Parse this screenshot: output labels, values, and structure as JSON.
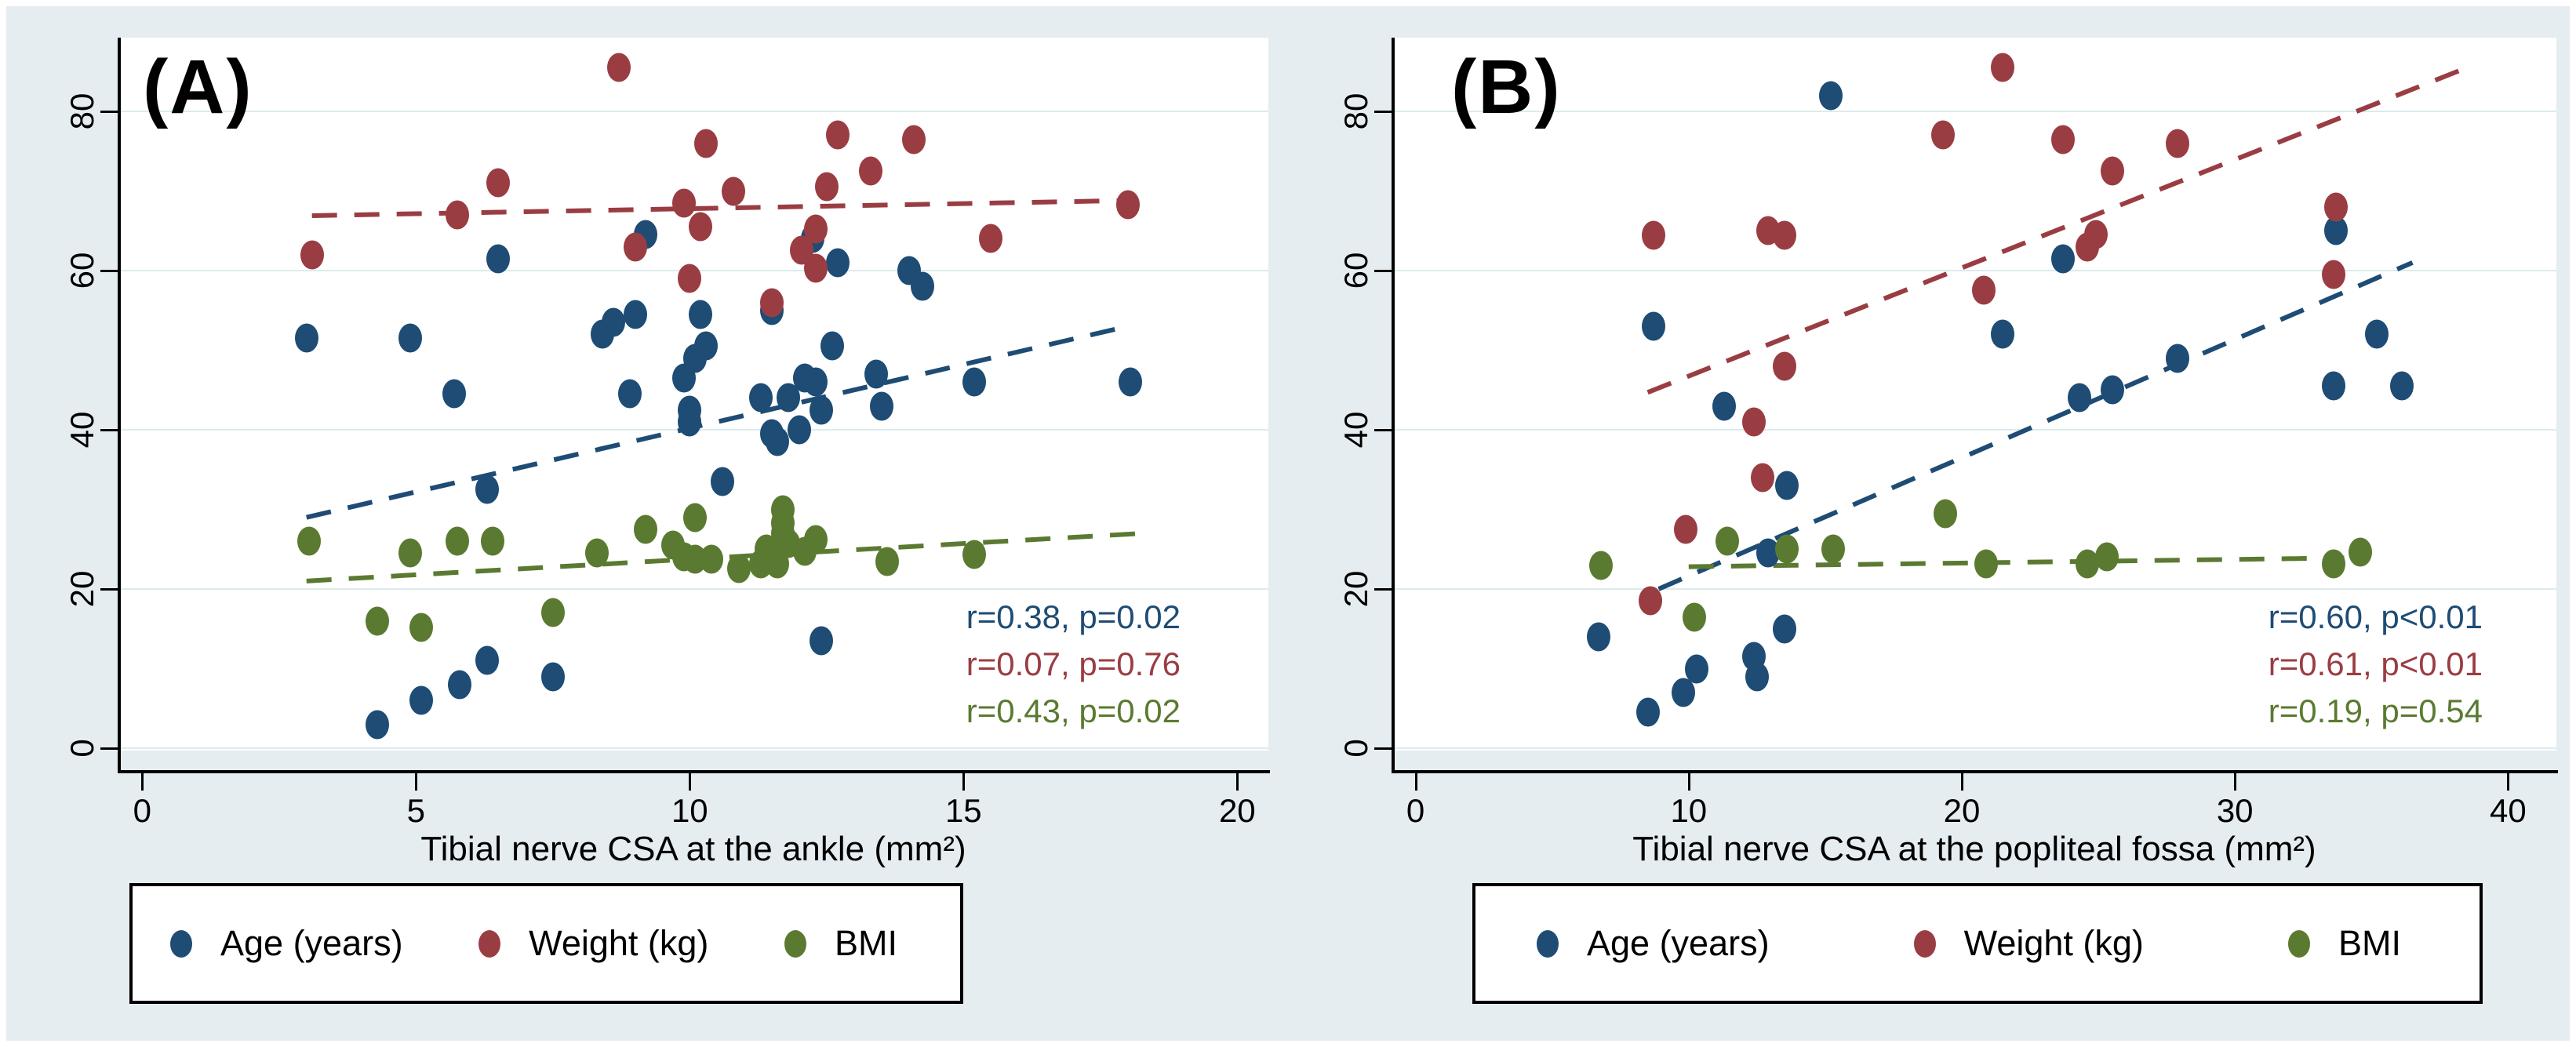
{
  "figure": {
    "background_color": "#e5edf0",
    "plot_background": "#ffffff",
    "gridline_color": "#dcebee",
    "series_colors": {
      "age": "#1e4c74",
      "weight": "#9a3d43",
      "bmi": "#5b7a31"
    }
  },
  "legend": {
    "entries": [
      {
        "label": "Age (years)",
        "color": "#1e4c74"
      },
      {
        "label": "Weight (kg)",
        "color": "#9a3d43"
      },
      {
        "label": "BMI",
        "color": "#5b7a31"
      }
    ]
  },
  "chart_data": [
    {
      "type": "scatter",
      "title": "(A)",
      "xlabel": "Tibial nerve CSA at the ankle (mm²)",
      "ylabel": "",
      "xlim": [
        0,
        20
      ],
      "ylim": [
        0,
        80
      ],
      "xticks": [
        0,
        5,
        10,
        15,
        20
      ],
      "yticks": [
        0,
        20,
        40,
        60,
        80
      ],
      "grid": true,
      "legend_position": "bottom",
      "series": [
        {
          "name": "Age (years)",
          "color": "#1e4c74",
          "points": [
            [
              3,
              51.5
            ],
            [
              4.9,
              51.5
            ],
            [
              4.3,
              3
            ],
            [
              5.1,
              6
            ],
            [
              5.8,
              8
            ],
            [
              6.3,
              11
            ],
            [
              7.5,
              9
            ],
            [
              5.7,
              44.5
            ],
            [
              8.9,
              44.5
            ],
            [
              6.5,
              61.5
            ],
            [
              9.2,
              64.5
            ],
            [
              8.4,
              52
            ],
            [
              8.6,
              53.5
            ],
            [
              9,
              54.5
            ],
            [
              9.9,
              46.5
            ],
            [
              10.1,
              49
            ],
            [
              10,
              42.5
            ],
            [
              10,
              41
            ],
            [
              6.3,
              32.5
            ],
            [
              10.6,
              33.5
            ],
            [
              10.2,
              54.5
            ],
            [
              10.3,
              50.5
            ],
            [
              11.3,
              44
            ],
            [
              11.8,
              44
            ],
            [
              12.1,
              46.5
            ],
            [
              12.3,
              46
            ],
            [
              12.4,
              42.5
            ],
            [
              11.5,
              39.5
            ],
            [
              11.6,
              38.5
            ],
            [
              12,
              40
            ],
            [
              15.2,
              46
            ],
            [
              12.4,
              13.5
            ],
            [
              11.5,
              55
            ],
            [
              12.25,
              64
            ],
            [
              12.7,
              61
            ],
            [
              14,
              60
            ],
            [
              14.25,
              58
            ],
            [
              12.6,
              50.5
            ],
            [
              13.4,
              47
            ],
            [
              13.5,
              43
            ],
            [
              18.05,
              46
            ]
          ],
          "trend": {
            "x1": 3.0,
            "y1": 29,
            "x2": 18.0,
            "y2": 53
          },
          "r_label": "r=0.38, p=0.02"
        },
        {
          "name": "Weight (kg)",
          "color": "#9a3d43",
          "points": [
            [
              8.7,
              85.5
            ],
            [
              6.5,
              71
            ],
            [
              5.75,
              67
            ],
            [
              3.1,
              62
            ],
            [
              9,
              63
            ],
            [
              10.3,
              76
            ],
            [
              12.7,
              77
            ],
            [
              14.1,
              76.5
            ],
            [
              13.3,
              72.5
            ],
            [
              10.8,
              70
            ],
            [
              12.5,
              70.5
            ],
            [
              9.9,
              68.5
            ],
            [
              18,
              68.3
            ],
            [
              10.2,
              65.5
            ],
            [
              12.3,
              65.2
            ],
            [
              12.05,
              62.6
            ],
            [
              12.3,
              60.3
            ],
            [
              10,
              59
            ],
            [
              11.5,
              56
            ],
            [
              15.5,
              64
            ]
          ],
          "trend": {
            "x1": 3.1,
            "y1": 66.9,
            "x2": 18.0,
            "y2": 68.8
          },
          "r_label": "r=0.07, p=0.76"
        },
        {
          "name": "BMI",
          "color": "#5b7a31",
          "points": [
            [
              3.05,
              26
            ],
            [
              4.9,
              24.5
            ],
            [
              5.75,
              26
            ],
            [
              6.4,
              26
            ],
            [
              8.3,
              24.5
            ],
            [
              9.2,
              27.5
            ],
            [
              10.1,
              29
            ],
            [
              9.7,
              25.5
            ],
            [
              9.9,
              24
            ],
            [
              10.1,
              23.7
            ],
            [
              10.4,
              23.7
            ],
            [
              10.9,
              22.6
            ],
            [
              11.4,
              25
            ],
            [
              11.3,
              23.2
            ],
            [
              11.6,
              23.2
            ],
            [
              11.7,
              30
            ],
            [
              11.7,
              28.3
            ],
            [
              11.7,
              27
            ],
            [
              11.8,
              25.7
            ],
            [
              12.1,
              24.7
            ],
            [
              12.3,
              26.2
            ],
            [
              13.6,
              23.4
            ],
            [
              15.2,
              24.3
            ],
            [
              4.3,
              16
            ],
            [
              5.1,
              15.2
            ],
            [
              7.5,
              17
            ]
          ],
          "trend": {
            "x1": 3.0,
            "y1": 21,
            "x2": 18.3,
            "y2": 27
          },
          "r_label": "r=0.43, p=0.02"
        }
      ]
    },
    {
      "type": "scatter",
      "title": "(B)",
      "xlabel": "Tibial nerve CSA at the popliteal fossa (mm²)",
      "ylabel": "",
      "xlim": [
        0,
        40
      ],
      "ylim": [
        0,
        80
      ],
      "xticks": [
        0,
        10,
        20,
        30,
        40
      ],
      "yticks": [
        0,
        20,
        40,
        60,
        80
      ],
      "grid": true,
      "legend_position": "bottom",
      "series": [
        {
          "name": "Age (years)",
          "color": "#1e4c74",
          "points": [
            [
              15.2,
              82
            ],
            [
              8.7,
              53
            ],
            [
              23.7,
              61.5
            ],
            [
              21.5,
              52
            ],
            [
              24.3,
              44
            ],
            [
              25.5,
              45
            ],
            [
              27.9,
              49
            ],
            [
              33.7,
              65
            ],
            [
              35.2,
              52
            ],
            [
              33.6,
              45.5
            ],
            [
              36.1,
              45.5
            ],
            [
              11.3,
              43
            ],
            [
              13.6,
              33
            ],
            [
              12.9,
              24.5
            ],
            [
              6.7,
              14
            ],
            [
              8.5,
              4.5
            ],
            [
              9.8,
              7
            ],
            [
              10.3,
              10
            ],
            [
              12.4,
              11.5
            ],
            [
              12.5,
              9
            ],
            [
              13.5,
              15
            ]
          ],
          "trend": {
            "x1": 8.9,
            "y1": 20,
            "x2": 36.5,
            "y2": 61
          },
          "r_label": "r=0.60, p<0.01"
        },
        {
          "name": "Weight (kg)",
          "color": "#9a3d43",
          "points": [
            [
              21.5,
              85.5
            ],
            [
              19.3,
              77
            ],
            [
              23.7,
              76.5
            ],
            [
              27.9,
              76
            ],
            [
              25.5,
              72.5
            ],
            [
              33.7,
              68
            ],
            [
              24.9,
              64.5
            ],
            [
              24.6,
              63
            ],
            [
              8.7,
              64.4
            ],
            [
              12.9,
              65
            ],
            [
              13.5,
              64.4
            ],
            [
              20.8,
              57.5
            ],
            [
              33.6,
              59.5
            ],
            [
              13.5,
              48
            ],
            [
              12.4,
              41
            ],
            [
              12.7,
              34
            ],
            [
              9.9,
              27.5
            ],
            [
              8.6,
              18.5
            ]
          ],
          "trend": {
            "x1": 8.5,
            "y1": 44.7,
            "x2": 38.5,
            "y2": 85.5
          },
          "r_label": "r=0.61, p<0.01"
        },
        {
          "name": "BMI",
          "color": "#5b7a31",
          "points": [
            [
              6.8,
              23
            ],
            [
              11.4,
              26
            ],
            [
              13.6,
              25
            ],
            [
              15.3,
              25
            ],
            [
              19.4,
              29.5
            ],
            [
              10.2,
              16.5
            ],
            [
              20.9,
              23.2
            ],
            [
              24.6,
              23.2
            ],
            [
              25.3,
              24
            ],
            [
              33.6,
              23.2
            ],
            [
              34.6,
              24.6
            ]
          ],
          "trend": {
            "x1": 10.0,
            "y1": 22.8,
            "x2": 34.0,
            "y2": 23.9
          },
          "r_label": "r=0.19, p=0.54"
        }
      ]
    }
  ]
}
